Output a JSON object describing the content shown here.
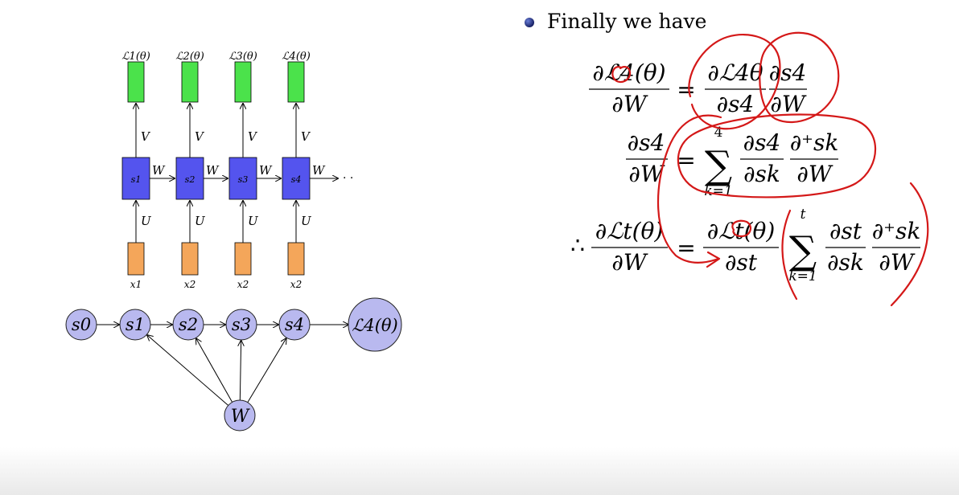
{
  "unrolled_rnn": {
    "losses": [
      "ℒ1(θ)",
      "ℒ2(θ)",
      "ℒ3(θ)",
      "ℒ4(θ)"
    ],
    "states": [
      "s1",
      "s2",
      "s3",
      "s4"
    ],
    "inputs": [
      "x1",
      "x2",
      "x2",
      "x2"
    ],
    "output_weight": "V",
    "recurrent_weight": "W",
    "input_weight": "U",
    "continuation": "· ·"
  },
  "dependency_graph": {
    "nodes": [
      "s0",
      "s1",
      "s2",
      "s3",
      "s4"
    ],
    "loss_node": "ℒ4(θ)",
    "weight_node": "W"
  },
  "slide": {
    "bullet": "Finally we have",
    "equations": {
      "eq1": {
        "lhs_num": "∂ℒ4(θ)",
        "lhs_den": "∂W",
        "f1_num": "∂ℒ4θ",
        "f1_den": "∂s4",
        "f2_num": "∂s4",
        "f2_den": "∂W"
      },
      "eq2": {
        "lhs_num": "∂s4",
        "lhs_den": "∂W",
        "sum_upper": "4",
        "sum_lower": "k=1",
        "f1_num": "∂s4",
        "f1_den": "∂sk",
        "f2_num": "∂⁺sk",
        "f2_den": "∂W"
      },
      "eq3": {
        "therefore": "∴",
        "lhs_num": "∂ℒt(θ)",
        "lhs_den": "∂W",
        "f1_num": "∂ℒt(θ)",
        "f1_den": "∂st",
        "sum_upper": "t",
        "sum_lower": "k=1",
        "f2_num": "∂st",
        "f2_den": "∂sk",
        "f3_num": "∂⁺sk",
        "f3_den": "∂W"
      }
    }
  },
  "colors": {
    "loss_box": "#4be24b",
    "state_box": "#5454ee",
    "input_box": "#f4a65a",
    "graph_node": "#b9b9ef",
    "annotation_ink": "#d41818"
  }
}
